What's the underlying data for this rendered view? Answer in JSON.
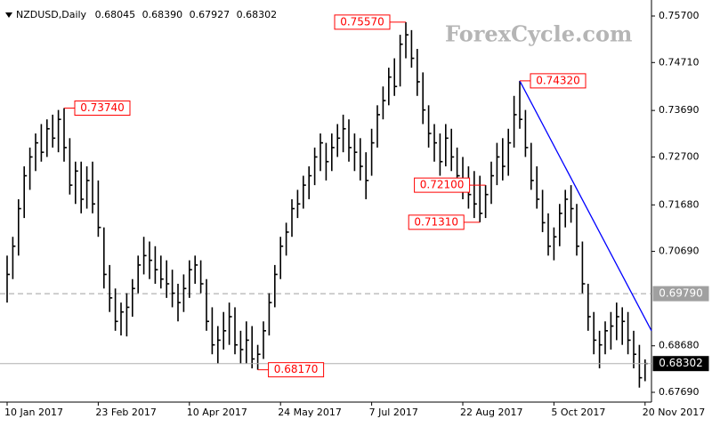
{
  "chart_data": {
    "type": "ohlc",
    "title": "NZDUSD,Daily",
    "header_values": [
      {
        "value": 0.68045,
        "label": "0.68045"
      },
      {
        "value": 0.6839,
        "label": "0.68390"
      },
      {
        "value": 0.67927,
        "label": "0.67927"
      },
      {
        "value": 0.68302,
        "label": "0.68302"
      }
    ],
    "watermark": "ForexCycle.com",
    "color": "#000000",
    "categories": [
      "10 Jan 2017",
      null,
      null,
      null,
      null,
      null,
      null,
      null,
      null,
      null,
      null,
      null,
      null,
      null,
      null,
      null,
      "23 Feb 2017",
      null,
      null,
      null,
      null,
      null,
      null,
      null,
      null,
      null,
      null,
      null,
      null,
      null,
      null,
      null,
      "10 Apr 2017",
      null,
      null,
      null,
      null,
      null,
      null,
      null,
      null,
      null,
      null,
      null,
      null,
      null,
      null,
      null,
      "24 May 2017",
      null,
      null,
      null,
      null,
      null,
      null,
      null,
      null,
      null,
      null,
      null,
      null,
      null,
      null,
      null,
      "7 Jul 2017",
      null,
      null,
      null,
      null,
      null,
      null,
      null,
      null,
      null,
      null,
      null,
      null,
      null,
      null,
      null,
      "22 Aug 2017",
      null,
      null,
      null,
      null,
      null,
      null,
      null,
      null,
      null,
      null,
      null,
      null,
      null,
      null,
      null,
      "5 Oct 2017",
      null,
      null,
      null,
      null,
      null,
      null,
      null,
      null,
      null,
      null,
      null,
      null,
      null,
      null,
      null,
      "20 Nov 2017"
    ],
    "high": [
      0.706,
      0.71,
      0.718,
      0.725,
      0.729,
      0.732,
      0.734,
      0.735,
      0.736,
      0.737,
      0.7374,
      0.731,
      0.726,
      0.726,
      0.725,
      0.726,
      0.722,
      0.712,
      0.704,
      0.699,
      0.696,
      0.698,
      0.701,
      0.706,
      0.71,
      0.709,
      0.708,
      0.706,
      0.705,
      0.703,
      0.7,
      0.702,
      0.705,
      0.706,
      0.705,
      0.701,
      0.695,
      0.691,
      0.694,
      0.696,
      0.695,
      0.69,
      0.692,
      0.691,
      0.687,
      0.692,
      0.698,
      0.704,
      0.71,
      0.713,
      0.718,
      0.72,
      0.723,
      0.725,
      0.729,
      0.732,
      0.73,
      0.732,
      0.734,
      0.736,
      0.735,
      0.732,
      0.731,
      0.728,
      0.733,
      0.738,
      0.742,
      0.746,
      0.748,
      0.753,
      0.7557,
      0.754,
      0.75,
      0.745,
      0.738,
      0.734,
      0.732,
      0.734,
      0.733,
      0.729,
      0.727,
      0.725,
      0.724,
      0.723,
      0.721,
      0.726,
      0.73,
      0.731,
      0.733,
      0.74,
      0.7432,
      0.737,
      0.73,
      0.725,
      0.72,
      0.715,
      0.712,
      0.717,
      0.72,
      0.721,
      0.717,
      0.709,
      0.7,
      0.694,
      0.69,
      0.692,
      0.694,
      0.696,
      0.695,
      0.694,
      0.69,
      0.687,
      0.6839
    ],
    "low": [
      0.696,
      0.701,
      0.706,
      0.714,
      0.72,
      0.724,
      0.726,
      0.727,
      0.729,
      0.728,
      0.726,
      0.719,
      0.717,
      0.715,
      0.716,
      0.715,
      0.71,
      0.699,
      0.694,
      0.69,
      0.689,
      0.6888,
      0.693,
      0.698,
      0.702,
      0.701,
      0.7,
      0.699,
      0.697,
      0.695,
      0.692,
      0.694,
      0.697,
      0.7,
      0.698,
      0.69,
      0.685,
      0.683,
      0.686,
      0.687,
      0.685,
      0.683,
      0.683,
      0.682,
      0.6817,
      0.684,
      0.689,
      0.695,
      0.701,
      0.706,
      0.71,
      0.714,
      0.716,
      0.718,
      0.721,
      0.724,
      0.722,
      0.724,
      0.727,
      0.728,
      0.726,
      0.724,
      0.722,
      0.718,
      0.723,
      0.729,
      0.735,
      0.738,
      0.74,
      0.742,
      0.748,
      0.746,
      0.74,
      0.734,
      0.729,
      0.726,
      0.723,
      0.725,
      0.724,
      0.72,
      0.718,
      0.716,
      0.714,
      0.7131,
      0.714,
      0.717,
      0.721,
      0.722,
      0.723,
      0.729,
      0.733,
      0.727,
      0.72,
      0.716,
      0.711,
      0.706,
      0.705,
      0.708,
      0.712,
      0.713,
      0.706,
      0.698,
      0.69,
      0.685,
      0.682,
      0.685,
      0.686,
      0.688,
      0.687,
      0.685,
      0.682,
      0.6779,
      0.67927
    ],
    "close": [
      0.702,
      0.708,
      0.716,
      0.723,
      0.727,
      0.73,
      0.728,
      0.733,
      0.731,
      0.735,
      0.729,
      0.721,
      0.724,
      0.718,
      0.722,
      0.717,
      0.712,
      0.702,
      0.697,
      0.692,
      0.694,
      0.695,
      0.699,
      0.704,
      0.706,
      0.705,
      0.703,
      0.701,
      0.7,
      0.698,
      0.696,
      0.699,
      0.703,
      0.704,
      0.7,
      0.692,
      0.687,
      0.688,
      0.69,
      0.693,
      0.687,
      0.686,
      0.688,
      0.684,
      0.685,
      0.69,
      0.696,
      0.702,
      0.708,
      0.711,
      0.716,
      0.717,
      0.721,
      0.723,
      0.727,
      0.73,
      0.726,
      0.729,
      0.731,
      0.733,
      0.729,
      0.728,
      0.725,
      0.722,
      0.73,
      0.736,
      0.739,
      0.744,
      0.742,
      0.751,
      0.753,
      0.748,
      0.743,
      0.737,
      0.732,
      0.73,
      0.726,
      0.731,
      0.727,
      0.723,
      0.721,
      0.719,
      0.717,
      0.715,
      0.719,
      0.723,
      0.727,
      0.725,
      0.73,
      0.736,
      0.735,
      0.729,
      0.722,
      0.718,
      0.713,
      0.708,
      0.71,
      0.715,
      0.718,
      0.716,
      0.708,
      0.7,
      0.693,
      0.688,
      0.687,
      0.69,
      0.691,
      0.693,
      0.692,
      0.688,
      0.685,
      0.68,
      0.68302
    ],
    "ylim": [
      0.67482,
      0.76041
    ],
    "yticks": [
      {
        "value": 0.757,
        "label": "0.75700"
      },
      {
        "value": 0.7471,
        "label": "0.74710"
      },
      {
        "value": 0.7369,
        "label": "0.73690"
      },
      {
        "value": 0.727,
        "label": "0.72700"
      },
      {
        "value": 0.7168,
        "label": "0.71680"
      },
      {
        "value": 0.7069,
        "label": "0.70690"
      },
      {
        "value": 0.6868,
        "label": "0.68680"
      },
      {
        "value": 0.6769,
        "label": "0.67690"
      }
    ],
    "level": {
      "value": 0.6979,
      "label": "0.69790",
      "color": "#a0a0a0"
    },
    "annotation_color": "#ff0000",
    "annotations": [
      {
        "value": 0.7374,
        "label": "0.73740"
      },
      {
        "value": 0.6817,
        "label": "0.68170"
      },
      {
        "value": 0.7557,
        "label": "0.75570"
      },
      {
        "value": 0.7131,
        "label": "0.71310"
      },
      {
        "value": 0.7432,
        "label": "0.74320"
      },
      {
        "value": 0.721,
        "label": "0.72100"
      }
    ],
    "trendline": {
      "from": 0.7432,
      "to": 0.69,
      "color": "#0000ff"
    }
  }
}
